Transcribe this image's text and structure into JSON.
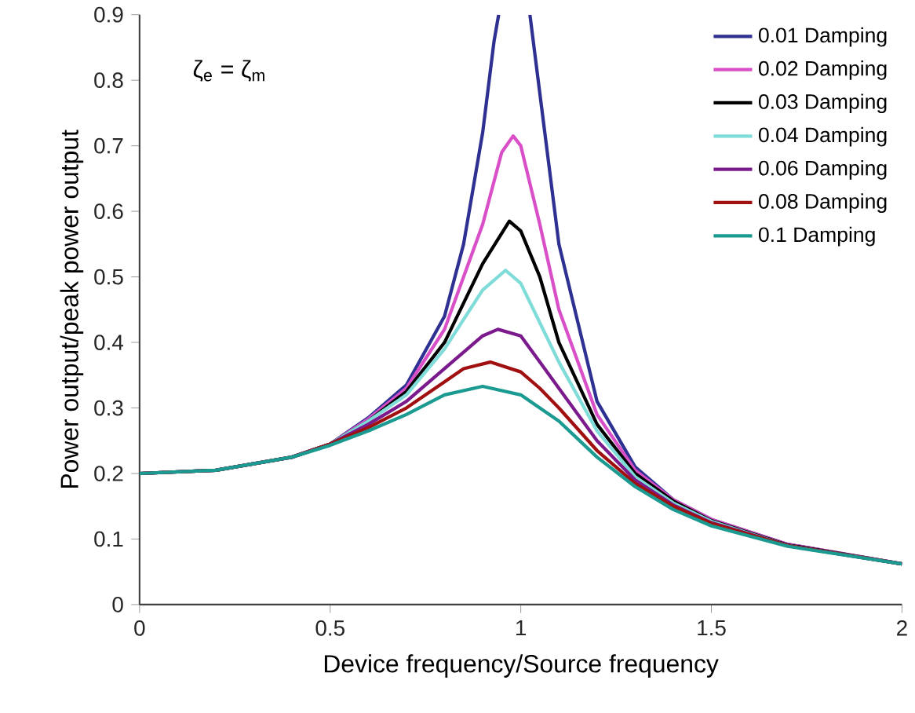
{
  "chart_data": {
    "type": "line",
    "xlabel": "Device frequency/Source frequency",
    "ylabel": "Power output/peak power output",
    "xlim": [
      0,
      2
    ],
    "ylim": [
      0,
      0.9
    ],
    "xticks": [
      0,
      0.5,
      1,
      1.5,
      2
    ],
    "yticks": [
      0,
      0.1,
      0.2,
      0.3,
      0.4,
      0.5,
      0.6,
      0.7,
      0.8,
      0.9
    ],
    "legend": "top right",
    "annotations": [
      "ζ$_{e}$ = ζ$_{m}$"
    ],
    "series": [
      {
        "name": "0.01 Damping",
        "color": "#2e3192",
        "x": [
          0,
          0.2,
          0.4,
          0.5,
          0.6,
          0.7,
          0.8,
          0.85,
          0.9,
          0.93,
          0.942,
          0.98,
          1.024,
          1.05,
          1.1,
          1.2,
          1.3,
          1.4,
          1.5,
          1.7,
          2.0
        ],
        "values": [
          0.2,
          0.205,
          0.225,
          0.245,
          0.285,
          0.335,
          0.44,
          0.55,
          0.72,
          0.86,
          0.9,
          null,
          0.9,
          0.78,
          0.55,
          0.31,
          0.21,
          0.16,
          0.13,
          0.092,
          0.062
        ]
      },
      {
        "name": "0.02 Damping",
        "color": "#d94fc8",
        "x": [
          0.4,
          0.5,
          0.6,
          0.7,
          0.8,
          0.9,
          0.95,
          0.98,
          1.0,
          1.05,
          1.1,
          1.2,
          1.3,
          1.4,
          1.5,
          1.7,
          2.0
        ],
        "values": [
          0.225,
          0.245,
          0.283,
          0.33,
          0.42,
          0.58,
          0.69,
          0.715,
          0.7,
          0.58,
          0.45,
          0.29,
          0.205,
          0.16,
          0.13,
          0.092,
          0.062
        ]
      },
      {
        "name": "0.03 Damping",
        "color": "#000000",
        "x": [
          0,
          0.2,
          0.4,
          0.5,
          0.6,
          0.7,
          0.8,
          0.9,
          0.97,
          1.0,
          1.05,
          1.1,
          1.2,
          1.3,
          1.4,
          1.5,
          1.7,
          2.0
        ],
        "values": [
          0.2,
          0.205,
          0.225,
          0.245,
          0.28,
          0.325,
          0.4,
          0.52,
          0.585,
          0.57,
          0.5,
          0.4,
          0.275,
          0.2,
          0.158,
          0.128,
          0.091,
          0.062
        ]
      },
      {
        "name": "0.04 Damping",
        "color": "#7fdcd8",
        "x": [
          0,
          0.2,
          0.4,
          0.5,
          0.6,
          0.7,
          0.8,
          0.9,
          0.96,
          1.0,
          1.05,
          1.1,
          1.2,
          1.3,
          1.4,
          1.5,
          1.7,
          2.0
        ],
        "values": [
          0.2,
          0.205,
          0.225,
          0.245,
          0.28,
          0.32,
          0.39,
          0.48,
          0.51,
          0.49,
          0.43,
          0.37,
          0.265,
          0.195,
          0.155,
          0.127,
          0.09,
          0.062
        ]
      },
      {
        "name": "0.06 Damping",
        "color": "#7b1a8c",
        "x": [
          0,
          0.2,
          0.4,
          0.5,
          0.6,
          0.7,
          0.8,
          0.9,
          0.94,
          1.0,
          1.05,
          1.1,
          1.2,
          1.3,
          1.4,
          1.5,
          1.7,
          2.0
        ],
        "values": [
          0.2,
          0.205,
          0.225,
          0.245,
          0.275,
          0.31,
          0.36,
          0.41,
          0.42,
          0.41,
          0.37,
          0.33,
          0.25,
          0.19,
          0.152,
          0.125,
          0.09,
          0.062
        ]
      },
      {
        "name": "0.08 Damping",
        "color": "#a01010",
        "x": [
          0,
          0.2,
          0.4,
          0.5,
          0.6,
          0.7,
          0.8,
          0.85,
          0.92,
          1.0,
          1.05,
          1.1,
          1.2,
          1.3,
          1.4,
          1.5,
          1.7,
          2.0
        ],
        "values": [
          0.2,
          0.205,
          0.225,
          0.245,
          0.27,
          0.3,
          0.34,
          0.36,
          0.37,
          0.355,
          0.33,
          0.3,
          0.235,
          0.185,
          0.15,
          0.124,
          0.09,
          0.062
        ]
      },
      {
        "name": "0.1 Damping",
        "color": "#1a9a90",
        "x": [
          0,
          0.2,
          0.4,
          0.5,
          0.6,
          0.7,
          0.8,
          0.9,
          1.0,
          1.1,
          1.2,
          1.3,
          1.4,
          1.5,
          1.7,
          2.0
        ],
        "values": [
          0.2,
          0.205,
          0.225,
          0.243,
          0.265,
          0.29,
          0.32,
          0.333,
          0.32,
          0.28,
          0.225,
          0.18,
          0.145,
          0.12,
          0.089,
          0.062
        ]
      }
    ]
  }
}
